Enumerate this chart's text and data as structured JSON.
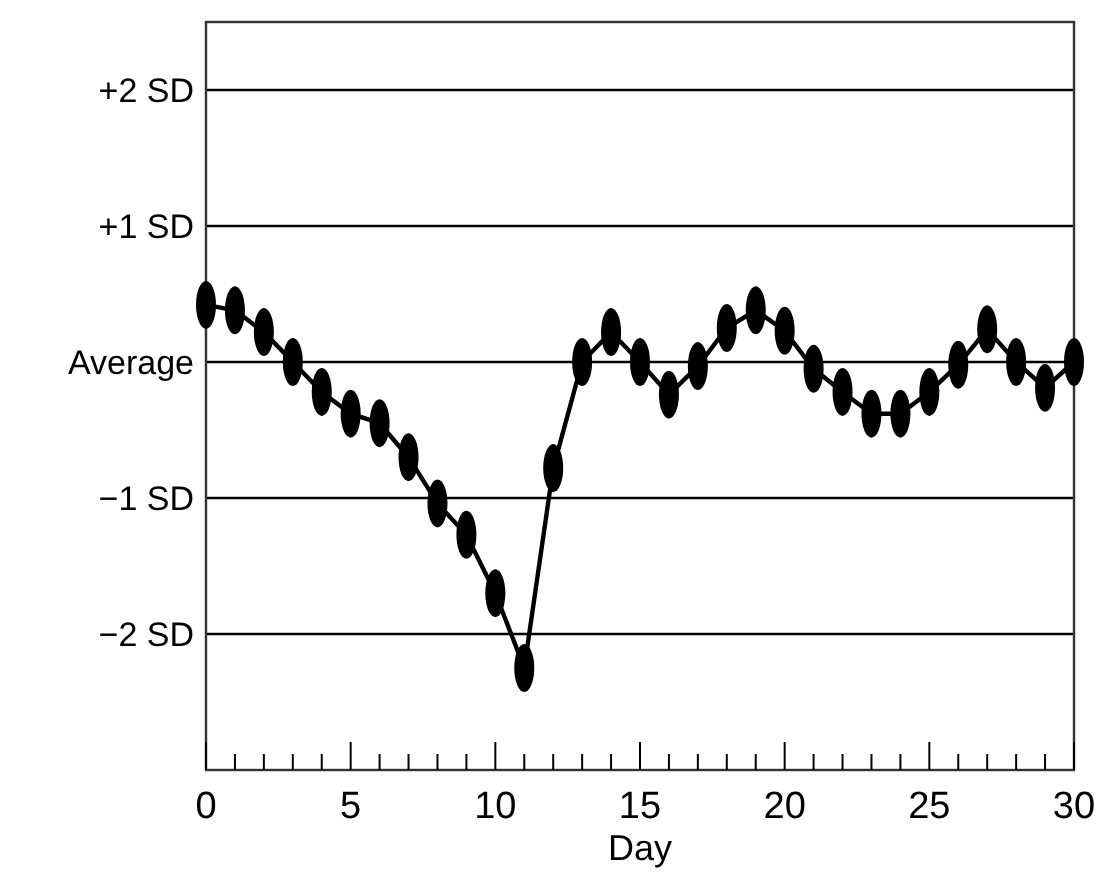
{
  "chart_data": {
    "type": "line",
    "xlabel": "Day",
    "x": [
      0,
      1,
      2,
      3,
      4,
      5,
      6,
      7,
      8,
      9,
      10,
      11,
      12,
      13,
      14,
      15,
      16,
      17,
      18,
      19,
      20,
      21,
      22,
      23,
      24,
      25,
      26,
      27,
      28,
      29,
      30
    ],
    "series": [
      {
        "color": "#000000",
        "values": [
          0.42,
          0.38,
          0.22,
          0,
          -0.22,
          -0.38,
          -0.45,
          -0.7,
          -1.04,
          -1.27,
          -1.7,
          -2.25,
          -0.78,
          0,
          0.22,
          0,
          -0.24,
          -0.03,
          0.25,
          0.38,
          0.23,
          -0.05,
          -0.22,
          -0.38,
          -0.38,
          -0.22,
          -0.02,
          0.24,
          0,
          -0.19,
          0
        ]
      }
    ],
    "xlim": [
      0,
      30
    ],
    "xticks": [
      0,
      {
        "value": 1,
        "label": null
      },
      {
        "value": 2,
        "label": null
      },
      {
        "value": 3,
        "label": null
      },
      {
        "value": 4,
        "label": null
      },
      5,
      {
        "value": 6,
        "label": null
      },
      {
        "value": 7,
        "label": null
      },
      {
        "value": 8,
        "label": null
      },
      {
        "value": 9,
        "label": null
      },
      10,
      {
        "value": 11,
        "label": null
      },
      {
        "value": 12,
        "label": null
      },
      {
        "value": 13,
        "label": null
      },
      {
        "value": 14,
        "label": null
      },
      15,
      {
        "value": 16,
        "label": null
      },
      {
        "value": 17,
        "label": null
      },
      {
        "value": 18,
        "label": null
      },
      {
        "value": 19,
        "label": null
      },
      20,
      {
        "value": 21,
        "label": null
      },
      {
        "value": 22,
        "label": null
      },
      {
        "value": 23,
        "label": null
      },
      {
        "value": 24,
        "label": null
      },
      25,
      {
        "value": 26,
        "label": null
      },
      {
        "value": 27,
        "label": null
      },
      {
        "value": 28,
        "label": null
      },
      {
        "value": 29,
        "label": null
      },
      30
    ],
    "ylim": [
      -3,
      2.5
    ],
    "yticks": [
      {
        "value": 2,
        "label": "+2 SD"
      },
      {
        "value": 1,
        "label": "+1 SD"
      },
      {
        "value": 0,
        "label": "Average"
      },
      {
        "value": -1,
        "label": "−1 SD"
      },
      {
        "value": -2,
        "label": "−2 SD"
      }
    ],
    "grid": "y",
    "marker": "circle",
    "line_style": "solid"
  }
}
